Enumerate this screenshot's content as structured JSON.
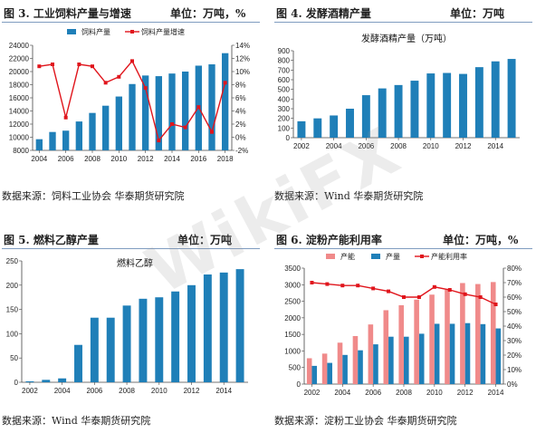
{
  "watermark": "WikiFX",
  "panels": [
    {
      "title": "图 3. 工业饲料产量与增速",
      "unit": "单位：万吨，%",
      "source": "数据来源：饲料工业协会 华泰期货研究院"
    },
    {
      "title": "图 4. 发酵酒精产量",
      "unit": "单位：万吨",
      "source": "数据来源：Wind 华泰期货研究院"
    },
    {
      "title": "图 5. 燃料乙醇产量",
      "unit": "单位：万吨",
      "source": "数据来源：Wind 华泰期货研究院"
    },
    {
      "title": "图 6. 淀粉产能利用率",
      "unit": "单位：万吨，%",
      "source": "数据来源：淀粉工业协会 华泰期货研究院"
    }
  ],
  "chart_data": [
    {
      "type": "bar",
      "title": "",
      "x": [
        2004,
        2005,
        2006,
        2007,
        2008,
        2009,
        2010,
        2011,
        2012,
        2013,
        2014,
        2015,
        2016,
        2017,
        2018
      ],
      "xticks": [
        2004,
        2006,
        2008,
        2010,
        2012,
        2014,
        2016,
        2018
      ],
      "series": [
        {
          "name": "饲料产量",
          "kind": "bar",
          "axis": "left",
          "color": "#1f7fb8",
          "values": [
            9700,
            10800,
            11000,
            12400,
            13700,
            14800,
            16200,
            18100,
            19400,
            19300,
            19700,
            20000,
            20900,
            21100,
            22800
          ]
        },
        {
          "name": "饲料产量增速",
          "kind": "line",
          "axis": "right",
          "color": "#e0151c",
          "values": [
            10.8,
            11.1,
            3.0,
            11.1,
            10.8,
            8.3,
            9.2,
            11.6,
            7.5,
            -0.5,
            2.0,
            1.5,
            4.6,
            0.8,
            8.3
          ]
        }
      ],
      "ylim": [
        8000,
        24000
      ],
      "yticks": [
        8000,
        10000,
        12000,
        14000,
        16000,
        18000,
        20000,
        22000,
        24000
      ],
      "y2lim": [
        -2,
        14
      ],
      "y2ticks": [
        "-2%",
        "0%",
        "2%",
        "4%",
        "6%",
        "8%",
        "10%",
        "12%",
        "14%"
      ],
      "legend": "top"
    },
    {
      "type": "bar",
      "title": "发酵酒精产量（万吨）",
      "x": [
        2002,
        2003,
        2004,
        2005,
        2006,
        2007,
        2008,
        2009,
        2010,
        2011,
        2012,
        2013,
        2014,
        2015
      ],
      "xticks": [
        2002,
        2004,
        2006,
        2008,
        2010,
        2012,
        2014
      ],
      "series": [
        {
          "name": "发酵酒精产量",
          "kind": "bar",
          "axis": "left",
          "color": "#1f7fb8",
          "values": [
            170,
            200,
            230,
            300,
            440,
            510,
            545,
            590,
            665,
            670,
            660,
            730,
            790,
            815
          ]
        }
      ],
      "ylim": [
        0,
        900
      ],
      "yticks": [
        0,
        100,
        200,
        300,
        400,
        500,
        600,
        700,
        800,
        900
      ]
    },
    {
      "type": "bar",
      "title": "燃料乙醇",
      "x": [
        2002,
        2003,
        2004,
        2005,
        2006,
        2007,
        2008,
        2009,
        2010,
        2011,
        2012,
        2013,
        2014,
        2015
      ],
      "xticks": [
        2002,
        2004,
        2006,
        2008,
        2010,
        2012,
        2014
      ],
      "series": [
        {
          "name": "燃料乙醇",
          "kind": "bar",
          "axis": "left",
          "color": "#1f7fb8",
          "values": [
            2,
            5,
            8,
            77,
            133,
            133,
            158,
            172,
            175,
            187,
            200,
            222,
            226,
            233
          ]
        }
      ],
      "ylim": [
        0,
        250
      ],
      "yticks": [
        0,
        50,
        100,
        150,
        200,
        250
      ]
    },
    {
      "type": "bar",
      "title": "",
      "x": [
        2002,
        2003,
        2004,
        2005,
        2006,
        2007,
        2008,
        2009,
        2010,
        2011,
        2012,
        2013,
        2014
      ],
      "xticks": [
        2002,
        2004,
        2006,
        2008,
        2010,
        2012,
        2014
      ],
      "series": [
        {
          "name": "产能",
          "kind": "bar",
          "axis": "left",
          "color": "#f08a8a",
          "values": [
            780,
            920,
            1250,
            1450,
            1800,
            2230,
            2380,
            2550,
            2700,
            2850,
            3050,
            3020,
            3080
          ]
        },
        {
          "name": "产量",
          "kind": "bar",
          "axis": "left",
          "color": "#1f7fb8",
          "values": [
            550,
            640,
            880,
            1020,
            1200,
            1430,
            1430,
            1520,
            1820,
            1820,
            1840,
            1810,
            1680
          ]
        },
        {
          "name": "产能利用率",
          "kind": "line",
          "axis": "right",
          "color": "#e0151c",
          "values": [
            70,
            69,
            68,
            68,
            66,
            64,
            60,
            60,
            67,
            65,
            62,
            60,
            55
          ]
        }
      ],
      "ylim": [
        0,
        3500
      ],
      "yticks": [
        0,
        500,
        1000,
        1500,
        2000,
        2500,
        3000,
        3500
      ],
      "y2lim": [
        0,
        80
      ],
      "y2ticks": [
        "0%",
        "10%",
        "20%",
        "30%",
        "40%",
        "50%",
        "60%",
        "70%",
        "80%"
      ],
      "legend": "top"
    }
  ]
}
